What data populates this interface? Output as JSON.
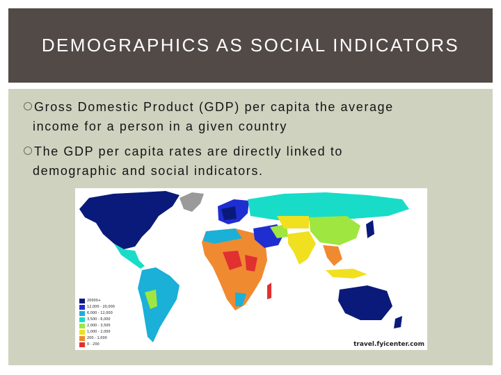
{
  "slide": {
    "title": "DEMOGRAPHICS AS SOCIAL INDICATORS",
    "bullets": [
      "Gross Domestic Product (GDP) per capita the average income for a person in a given country",
      "The GDP per capita rates are directly linked to demographic and social indicators."
    ]
  },
  "colors": {
    "title_bar": "#524a47",
    "content_bg": "#cfd2bf",
    "ocean": "#ffffff"
  },
  "map": {
    "legend": [
      {
        "label": "20000+",
        "color": "#0a1a7a"
      },
      {
        "label": "12,000 - 20,000",
        "color": "#1f2ed1"
      },
      {
        "label": "6,000 - 12,000",
        "color": "#1ab0d8"
      },
      {
        "label": "3,500 - 6,000",
        "color": "#18dcc8"
      },
      {
        "label": "2,000 - 3,500",
        "color": "#9fe640"
      },
      {
        "label": "1,000 - 2,000",
        "color": "#f0e020"
      },
      {
        "label": "200 - 1,000",
        "color": "#f08a30"
      },
      {
        "label": "0 - 200",
        "color": "#e03030"
      }
    ],
    "no_data_color": "#9a9a9a",
    "credit": "travel.fyicenter.com"
  }
}
